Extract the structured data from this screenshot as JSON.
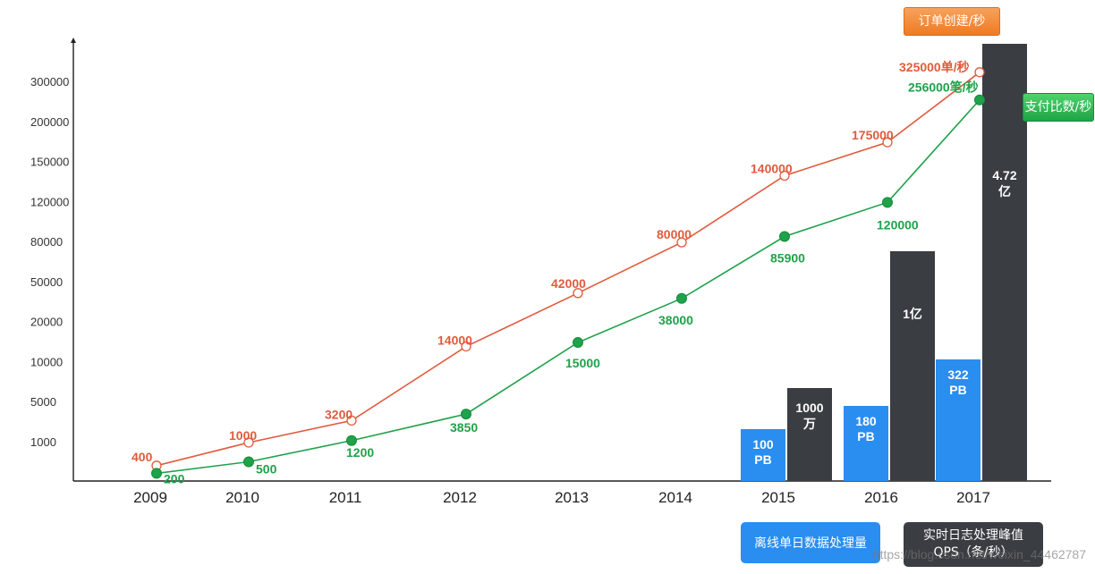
{
  "chart_data": {
    "type": "line+bar",
    "y_ticks": [
      "1000",
      "5000",
      "10000",
      "20000",
      "50000",
      "80000",
      "120000",
      "150000",
      "200000",
      "300000"
    ],
    "categories": [
      "2009",
      "2010",
      "2011",
      "2012",
      "2013",
      "2014",
      "2015",
      "2016",
      "2017"
    ],
    "line_series": [
      {
        "name": "订单创建/秒",
        "color": "#e05a3c",
        "values": [
          400,
          1000,
          3200,
          14000,
          42000,
          80000,
          140000,
          175000,
          325000
        ],
        "labels": [
          "400",
          "1000",
          "3200",
          "14000",
          "42000",
          "80000",
          "140000",
          "175000",
          "325000单/秒"
        ]
      },
      {
        "name": "支付比数/秒",
        "color": "#1fa24a",
        "values": [
          200,
          500,
          1200,
          3850,
          15000,
          38000,
          85900,
          120000,
          256000
        ],
        "labels": [
          "200",
          "500",
          "1200",
          "3850",
          "15000",
          "38000",
          "85900",
          "120000",
          "256000笔/秒"
        ]
      }
    ],
    "bar_series": [
      {
        "name": "离线单日数据处理量",
        "color": "#2a8df0",
        "categories": [
          "2015",
          "2016",
          "2017"
        ],
        "values_pb": [
          100,
          180,
          322
        ],
        "labels": [
          [
            "100",
            "PB"
          ],
          [
            "180",
            "PB"
          ],
          [
            "322",
            "PB"
          ]
        ]
      },
      {
        "name": "实时日志处理峰值 QPS（条/秒）",
        "color": "#3a3d42",
        "categories": [
          "2015",
          "2016",
          "2017"
        ],
        "values_records": [
          10000000,
          100000000,
          472000000
        ],
        "labels": [
          [
            "1000",
            "万"
          ],
          [
            "1亿"
          ],
          [
            "4.72",
            "亿"
          ]
        ]
      }
    ],
    "legend": {
      "order": "订单创建/秒",
      "pay": "支付比数/秒",
      "blue": "离线单日数据处理量",
      "dark": "实时日志处理峰值\nQPS（条/秒）"
    }
  },
  "watermark": "https://blog.csdn.net/weixin_44462787"
}
